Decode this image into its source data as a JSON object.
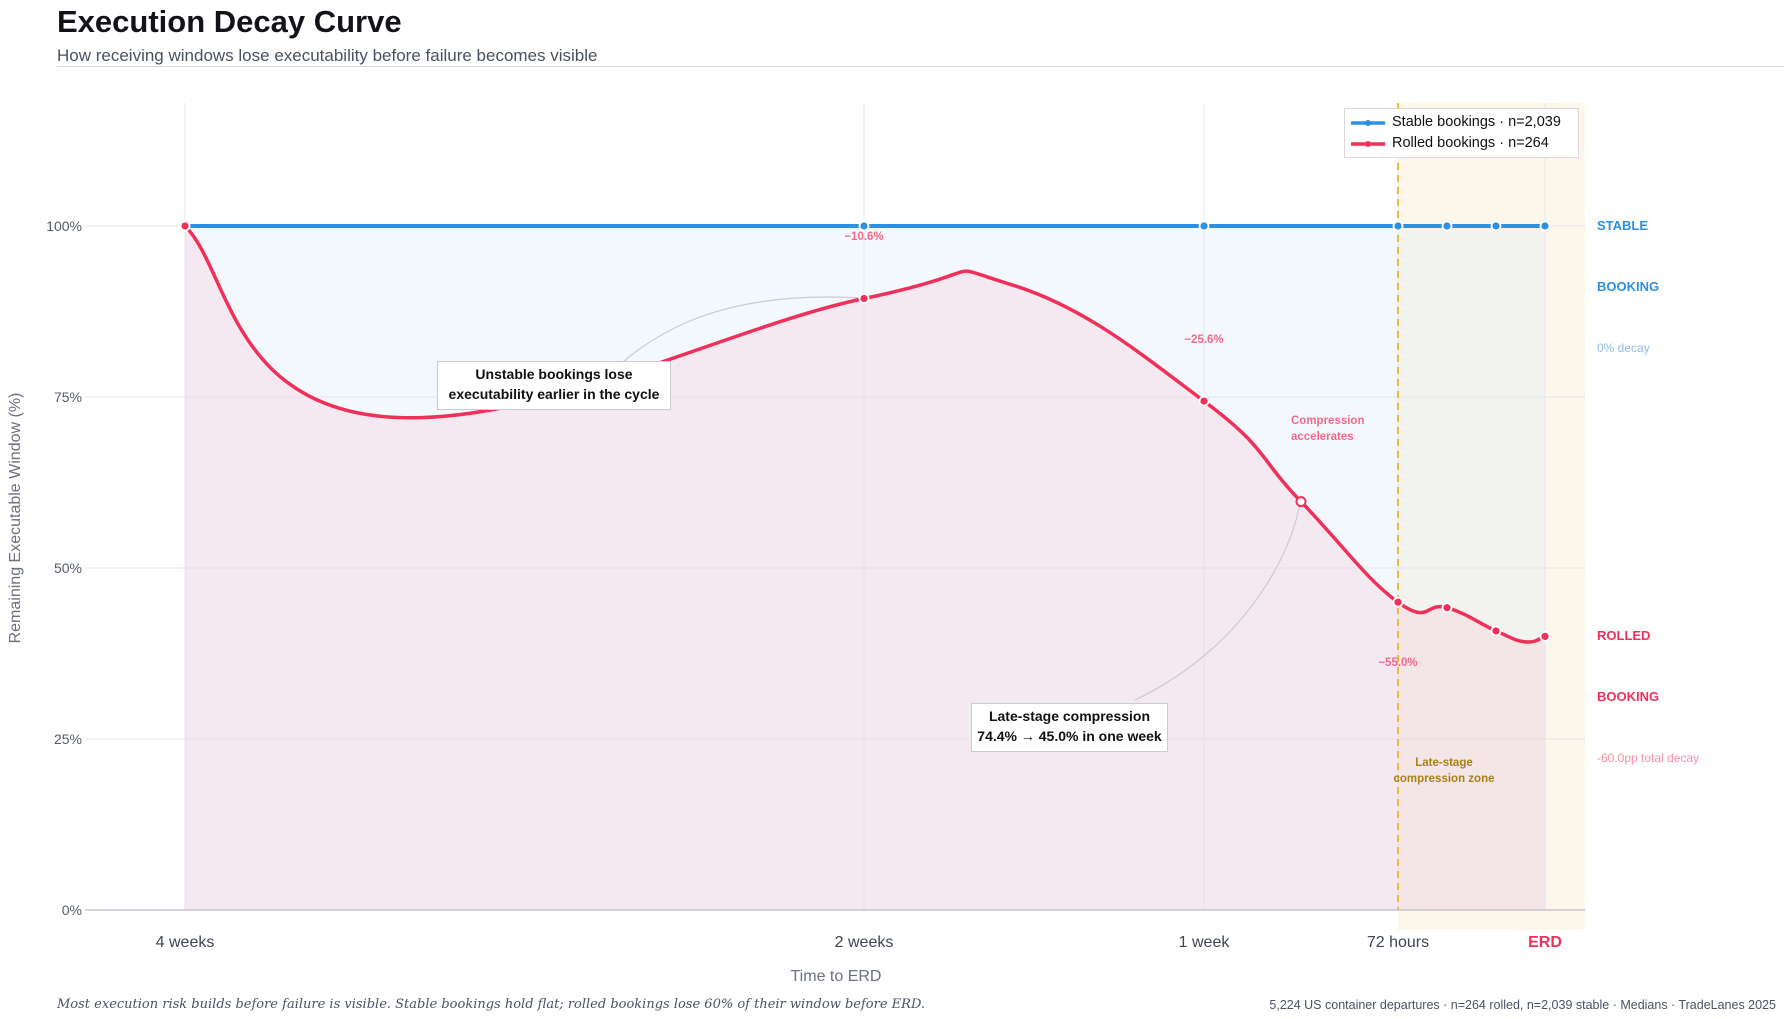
{
  "header": {
    "title": "Execution Decay Curve",
    "subtitle": "How receiving windows lose executability before failure becomes visible"
  },
  "chart_data": {
    "type": "line",
    "title": "Execution Decay Curve",
    "subtitle": "How receiving windows lose executability before failure becomes visible",
    "xlabel": "Time to ERD",
    "ylabel": "Remaining Executable Window (%)",
    "x_ticks": [
      "4 weeks",
      "2 weeks",
      "1 week",
      "72 hours",
      "ERD"
    ],
    "x_days": [
      28,
      14,
      7,
      3,
      0
    ],
    "y_ticks": [
      "0%",
      "25%",
      "50%",
      "75%",
      "100%"
    ],
    "ylim": [
      0,
      118
    ],
    "grid": true,
    "legend_position": "top-right",
    "series": [
      {
        "name": "Stable bookings",
        "legend_n": "n=2,039",
        "color": "#2f8fe0",
        "points": [
          [
            28,
            100
          ],
          [
            14,
            100
          ],
          [
            7,
            100
          ],
          [
            3,
            100
          ],
          [
            2,
            100
          ],
          [
            1,
            100
          ],
          [
            0,
            100
          ]
        ]
      },
      {
        "name": "Rolled bookings",
        "legend_n": "n=264",
        "color": "#f03058",
        "points": [
          [
            28,
            100
          ],
          [
            14,
            89.4
          ],
          [
            7,
            74.4
          ],
          [
            3,
            45.0
          ],
          [
            2,
            44.2
          ],
          [
            1,
            40.8
          ],
          [
            0,
            40.0
          ]
        ]
      }
    ],
    "data_labels": [
      "−10.6%",
      "−25.6%",
      "−55.0%"
    ],
    "zone_label": "Late-stage compression zone",
    "zone_range_days": [
      3,
      0
    ],
    "compression_point": [
      5,
      59.7
    ]
  },
  "annotations": {
    "unstable_line1": "Unstable bookings lose",
    "unstable_line2": "executability earlier in the cycle",
    "late_line1": "Late-stage compression",
    "late_line2": "74.4% → 45.0% in one week",
    "compression_line1": "Compression",
    "compression_line2": "accelerates",
    "zone_line1": "Late-stage",
    "zone_line2": "compression zone"
  },
  "side_labels": {
    "stable_1": "STABLE",
    "stable_2": "BOOKING",
    "stable_decay": "0% decay",
    "rolled_1": "ROLLED",
    "rolled_2": "BOOKING",
    "rolled_decay": "-60.0pp total decay"
  },
  "legend": {
    "stable_label": "Stable bookings  ·  n=2,039",
    "rolled_label": "Rolled bookings  ·  n=264"
  },
  "footer": {
    "left": "Most execution risk builds before failure is visible. Stable bookings hold flat; rolled bookings lose 60% of their window before ERD.",
    "right": "5,224 US container departures · n=264 rolled, n=2,039 stable · Medians · TradeLanes 2025"
  },
  "colors": {
    "stable": "#2f8fe0",
    "rolled": "#f03058",
    "zone": "#e8b820"
  }
}
